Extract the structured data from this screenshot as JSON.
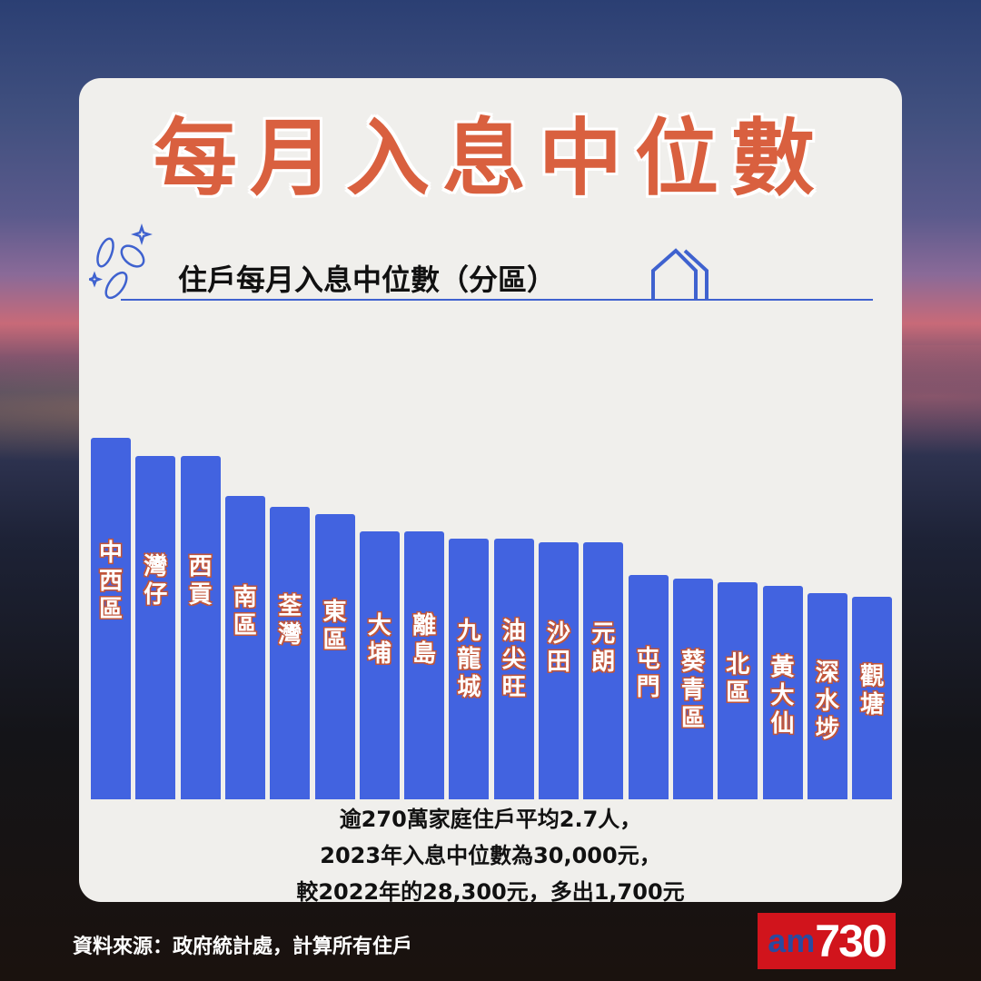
{
  "title": "每月入息中位數",
  "subtitle": "住戶每月入息中位數（分區）",
  "colors": {
    "bar": "#4263e0",
    "title": "#d9603f",
    "card": "#f0efec",
    "accent_line": "#3f62cf",
    "logo_bg": "#d1141c"
  },
  "icons": [
    "coins-icon",
    "house-icon"
  ],
  "chart_data": {
    "type": "bar",
    "orientation": "vertical",
    "note": "",
    "categories": [
      "中西區",
      "灣仔",
      "西貢",
      "南區",
      "荃灣",
      "東區",
      "大埔",
      "離島",
      "九龍城",
      "油尖旺",
      "沙田",
      "元朗",
      "屯門",
      "葵青區",
      "北區",
      "黃大仙",
      "深水埗",
      "觀塘"
    ],
    "values": [
      100,
      95,
      95,
      84,
      81,
      79,
      74,
      74,
      72,
      72,
      71,
      71,
      62,
      61,
      60,
      59,
      57,
      56
    ],
    "value_units": "relative bar height (no axis or values printed)",
    "grid": false,
    "legend": "none"
  },
  "notes": [
    "逾270萬家庭住戶平均2.7人，",
    "2023年入息中位數為30,000元，",
    "較2022年的28,300元，多出1,700元"
  ],
  "source": "資料來源：政府統計處，計算所有住戶",
  "logo": {
    "am": "am",
    "num": "730"
  }
}
